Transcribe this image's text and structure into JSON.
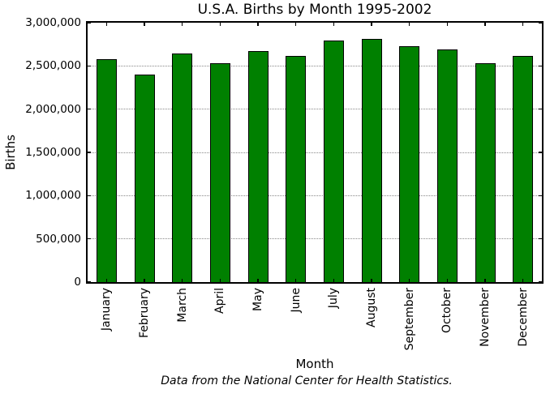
{
  "figure": {
    "title": "U.S.A. Births by Month 1995-2002",
    "xlabel": "Month",
    "ylabel": "Births",
    "footnote": "Data from the National Center for Health Statistics."
  },
  "chart_data": {
    "type": "bar",
    "title": "U.S.A. Births by Month 1995-2002",
    "xlabel": "Month",
    "ylabel": "Births",
    "categories": [
      "January",
      "February",
      "March",
      "April",
      "May",
      "June",
      "July",
      "August",
      "September",
      "October",
      "November",
      "December"
    ],
    "values": [
      2580000,
      2400000,
      2640000,
      2530000,
      2670000,
      2620000,
      2790000,
      2810000,
      2730000,
      2690000,
      2530000,
      2620000
    ],
    "ylim": [
      0,
      3000000
    ],
    "ytick_values": [
      0,
      500000,
      1000000,
      1500000,
      2000000,
      2500000,
      3000000
    ],
    "ytick_labels": [
      "0",
      "500,000",
      "1,000,000",
      "1,500,000",
      "2,000,000",
      "2,500,000",
      "3,000,000"
    ],
    "grid": "horizontal dotted gridlines at each y tick",
    "legend": "none",
    "bar_color": "#008000",
    "bar_edge_color": "#000000",
    "annotation": "Data from the National Center for Health Statistics."
  }
}
